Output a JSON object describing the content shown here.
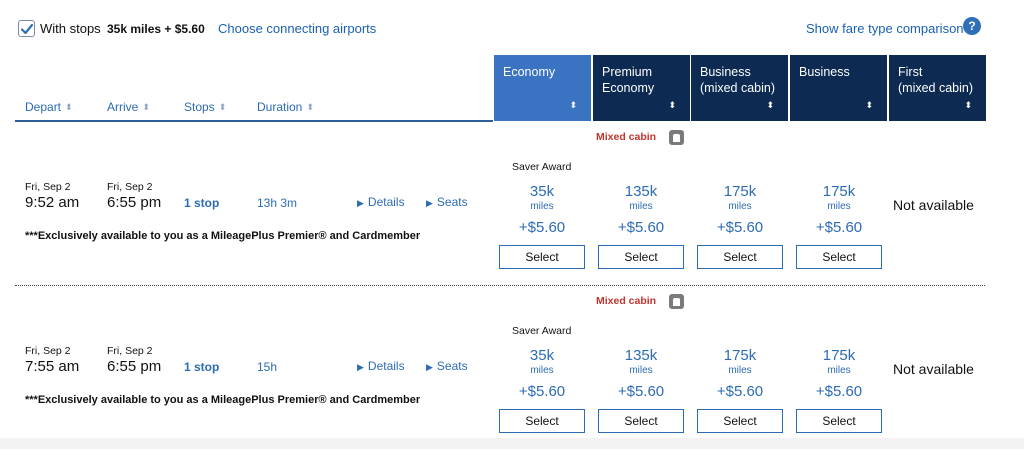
{
  "toolbar": {
    "with_stops_label": "With stops",
    "with_stops_checked": true,
    "miles_summary": "35k miles + $5.60",
    "connect_link": "Choose connecting airports",
    "compare_link": "Show fare type comparison",
    "help_icon": "?"
  },
  "columns": {
    "depart": "Depart",
    "arrive": "Arrive",
    "stops": "Stops",
    "duration": "Duration"
  },
  "cabins": [
    {
      "line1": "Economy",
      "line2": ""
    },
    {
      "line1": "Premium",
      "line2": "Economy"
    },
    {
      "line1": "Business",
      "line2": "(mixed cabin)"
    },
    {
      "line1": "Business",
      "line2": ""
    },
    {
      "line1": "First",
      "line2": "(mixed cabin)"
    }
  ],
  "rows": [
    {
      "mixed_cabin": "Mixed cabin",
      "saver_award": "Saver Award",
      "depart_date": "Fri, Sep 2",
      "depart_time": "9:52 am",
      "arrive_date": "Fri, Sep 2",
      "arrive_time": "6:55 pm",
      "stops": "1 stop",
      "duration": "13h 3m",
      "details": "Details",
      "seats": "Seats",
      "note": "***Exclusively available to you as a MileagePlus Premier® and Cardmember",
      "fares": [
        {
          "miles": "35k",
          "unit": "miles",
          "tax": "+$5.60",
          "button": "Select"
        },
        {
          "miles": "135k",
          "unit": "miles",
          "tax": "+$5.60",
          "button": "Select"
        },
        {
          "miles": "175k",
          "unit": "miles",
          "tax": "+$5.60",
          "button": "Select"
        },
        {
          "miles": "175k",
          "unit": "miles",
          "tax": "+$5.60",
          "button": "Select"
        }
      ],
      "first": "Not available"
    },
    {
      "mixed_cabin": "Mixed cabin",
      "saver_award": "Saver Award",
      "depart_date": "Fri, Sep 2",
      "depart_time": "7:55 am",
      "arrive_date": "Fri, Sep 2",
      "arrive_time": "6:55 pm",
      "stops": "1 stop",
      "duration": "15h",
      "details": "Details",
      "seats": "Seats",
      "note": "***Exclusively available to you as a MileagePlus Premier® and Cardmember",
      "fares": [
        {
          "miles": "35k",
          "unit": "miles",
          "tax": "+$5.60",
          "button": "Select"
        },
        {
          "miles": "135k",
          "unit": "miles",
          "tax": "+$5.60",
          "button": "Select"
        },
        {
          "miles": "175k",
          "unit": "miles",
          "tax": "+$5.60",
          "button": "Select"
        },
        {
          "miles": "175k",
          "unit": "miles",
          "tax": "+$5.60",
          "button": "Select"
        }
      ],
      "first": "Not available"
    }
  ],
  "colors": {
    "link": "#2d6cb3",
    "economy_header": "#3a73c1",
    "premium_header": "#0d2a52",
    "mixed_cabin": "#c2342e"
  }
}
